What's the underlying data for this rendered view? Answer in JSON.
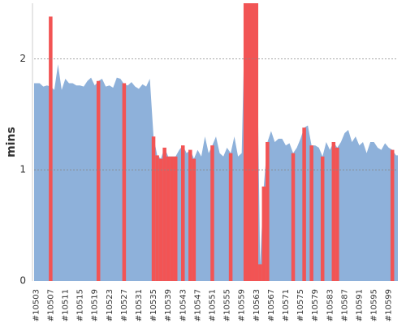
{
  "chart_data": {
    "type": "area",
    "y_label": "mins",
    "categories": [
      "#10503",
      null,
      null,
      null,
      "#10507",
      null,
      null,
      null,
      "#10511",
      null,
      null,
      null,
      "#10515",
      null,
      null,
      null,
      "#10519",
      null,
      null,
      null,
      "#10523",
      null,
      null,
      null,
      "#10527",
      null,
      null,
      null,
      "#10531",
      null,
      null,
      null,
      "#10535",
      null,
      null,
      null,
      "#10539",
      null,
      null,
      null,
      "#10543",
      null,
      null,
      null,
      "#10547",
      null,
      null,
      null,
      "#10551",
      null,
      null,
      null,
      "#10555",
      null,
      null,
      null,
      "#10559",
      null,
      null,
      null,
      "#10563",
      null,
      null,
      null,
      "#10567",
      null,
      null,
      null,
      "#10571",
      null,
      null,
      null,
      "#10575",
      null,
      null,
      null,
      "#10579",
      null,
      null,
      null,
      "#10583",
      null,
      null,
      null,
      "#10587",
      null,
      null,
      null,
      "#10591",
      null,
      null,
      null,
      "#10595",
      null,
      null,
      null,
      "#10599",
      null,
      null
    ],
    "series": [
      {
        "color": "#8eb1da",
        "style": "area",
        "values": [
          1.78,
          1.78,
          1.75,
          1.76,
          1.75,
          1.72,
          1.95,
          1.72,
          1.82,
          1.78,
          1.78,
          1.76,
          1.76,
          1.75,
          1.8,
          1.83,
          1.76,
          1.8,
          1.82,
          1.75,
          1.76,
          1.74,
          1.83,
          1.82,
          1.77,
          1.76,
          1.79,
          1.75,
          1.73,
          1.77,
          1.75,
          1.82,
          1.3,
          1.13,
          1.1,
          1.2,
          1.12,
          1.12,
          1.12,
          1.18,
          1.22,
          1.15,
          1.18,
          1.1,
          1.18,
          1.12,
          1.3,
          1.15,
          1.22,
          1.3,
          1.15,
          1.12,
          1.2,
          1.15,
          1.3,
          1.12,
          1.15,
          2.6,
          2.6,
          2.6,
          2.6,
          0.15,
          0.85,
          1.25,
          1.35,
          1.25,
          1.28,
          1.28,
          1.22,
          1.24,
          1.15,
          1.2,
          1.28,
          1.38,
          1.4,
          1.22,
          1.22,
          1.2,
          1.12,
          1.25,
          1.18,
          1.25,
          1.2,
          1.25,
          1.33,
          1.36,
          1.25,
          1.3,
          1.22,
          1.25,
          1.15,
          1.25,
          1.25,
          1.2,
          1.18,
          1.24,
          1.2,
          1.18,
          1.13
        ]
      },
      {
        "color": "#f25454",
        "style": "bar",
        "values": [
          null,
          null,
          null,
          null,
          2.38,
          null,
          null,
          null,
          null,
          null,
          null,
          null,
          null,
          null,
          null,
          null,
          null,
          1.8,
          null,
          null,
          null,
          null,
          null,
          null,
          1.78,
          null,
          null,
          null,
          null,
          null,
          null,
          null,
          1.3,
          1.13,
          1.1,
          1.2,
          1.12,
          1.12,
          1.12,
          null,
          1.22,
          null,
          1.18,
          1.1,
          null,
          null,
          null,
          null,
          1.22,
          null,
          null,
          null,
          null,
          1.15,
          null,
          null,
          null,
          2.6,
          2.6,
          2.6,
          2.6,
          0.15,
          0.85,
          1.25,
          null,
          null,
          null,
          null,
          null,
          null,
          1.15,
          null,
          null,
          1.38,
          null,
          1.22,
          null,
          null,
          1.12,
          null,
          null,
          1.25,
          1.2,
          null,
          null,
          null,
          null,
          null,
          null,
          null,
          null,
          null,
          null,
          null,
          null,
          null,
          null,
          1.18,
          null
        ]
      }
    ],
    "ylim": [
      0,
      2.5
    ],
    "yticks": [
      0,
      1,
      2
    ],
    "grid": true
  }
}
